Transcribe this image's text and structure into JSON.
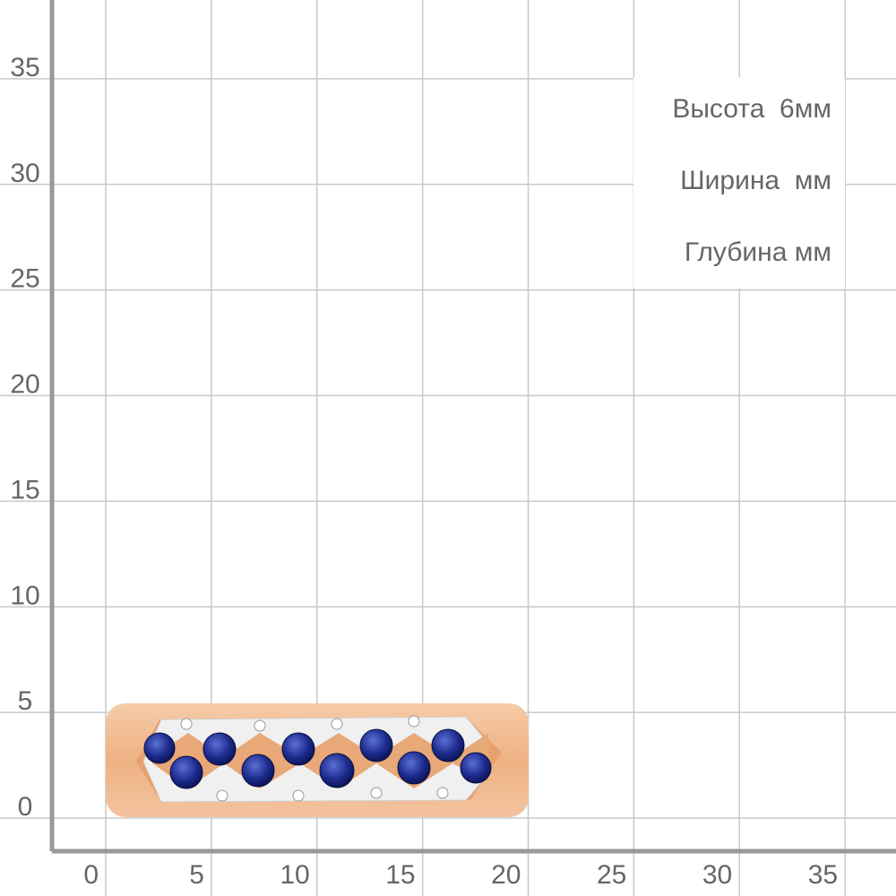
{
  "grid": {
    "xticks": [
      0,
      5,
      10,
      15,
      20,
      25,
      30,
      35
    ],
    "yticks": [
      0,
      5,
      10,
      15,
      20,
      25,
      30,
      35
    ]
  },
  "dimensions": [
    "Высота  6мм",
    "Ширина  мм",
    "Глубина мм"
  ]
}
